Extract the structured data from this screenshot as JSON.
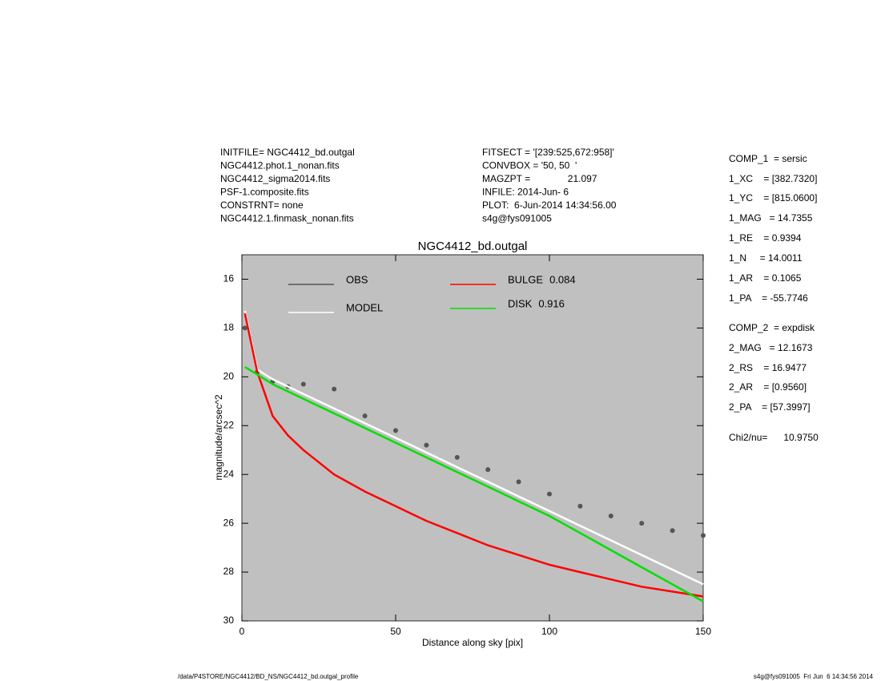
{
  "chart_data": {
    "type": "profile",
    "title": "NGC4412_bd.outgal",
    "x_label": "Distance along sky [pix]",
    "y_label": "magnitude/arcsec^2",
    "xlim": [
      0,
      150
    ],
    "ylim": [
      30,
      15
    ],
    "xticks": [
      0,
      50,
      100,
      150
    ],
    "yticks": [
      16,
      18,
      20,
      22,
      24,
      26,
      28,
      30
    ],
    "background": "#c0c0c0",
    "x": [
      1,
      5,
      10,
      15,
      20,
      30,
      40,
      50,
      60,
      70,
      80,
      90,
      100,
      110,
      120,
      130,
      140,
      150
    ],
    "series": [
      {
        "name": "OBS",
        "color": "#555555",
        "style": "scatter",
        "values": [
          18.0,
          19.8,
          20.2,
          20.4,
          20.3,
          20.5,
          21.6,
          22.2,
          22.8,
          23.3,
          23.8,
          24.3,
          24.8,
          25.3,
          25.7,
          26.0,
          26.3,
          26.5
        ]
      },
      {
        "name": "MODEL",
        "color": "#ffffff",
        "style": "line",
        "values": [
          17.3,
          19.7,
          20.1,
          20.4,
          20.7,
          21.3,
          21.9,
          22.5,
          23.1,
          23.7,
          24.3,
          24.9,
          25.5,
          26.1,
          26.7,
          27.3,
          27.9,
          28.5
        ]
      },
      {
        "name": "BULGE",
        "fraction": 0.084,
        "color": "#ff0000",
        "style": "line",
        "values": [
          17.4,
          19.8,
          21.6,
          22.4,
          23.0,
          24.0,
          24.7,
          25.3,
          25.9,
          26.4,
          26.9,
          27.3,
          27.7,
          28.0,
          28.3,
          28.6,
          28.8,
          29.0
        ]
      },
      {
        "name": "DISK",
        "fraction": 0.916,
        "color": "#00e000",
        "style": "line",
        "values": [
          19.6,
          19.9,
          20.3,
          20.6,
          20.9,
          21.5,
          22.1,
          22.7,
          23.3,
          23.9,
          24.5,
          25.1,
          25.7,
          26.4,
          27.1,
          27.8,
          28.5,
          29.2
        ]
      }
    ],
    "annotations": {
      "left": [
        "INITFILE= NGC4412_bd.outgal",
        "NGC4412.phot.1_nonan.fits",
        "NGC4412_sigma2014.fits",
        "PSF-1.composite.fits",
        "CONSTRNT= none",
        "NGC4412.1.finmask_nonan.fits"
      ],
      "middle": [
        "FITSECT = '[239:525,672:958]'",
        "CONVBOX = '50, 50  '",
        "MAGZPT =              21.097",
        "INFILE: 2014-Jun- 6",
        "PLOT:  6-Jun-2014 14:34:56.00",
        "s4g@fys091005"
      ],
      "right": [
        "COMP_1  = sersic",
        "1_XC    = [382.7320]",
        "1_YC    = [815.0600]",
        "1_MAG   = 14.7355",
        "1_RE    = 0.9394",
        "1_N     = 14.0011",
        "1_AR    = 0.1065",
        "1_PA    = -55.7746",
        "COMP_2  = expdisk",
        "2_MAG   = 12.1673",
        "2_RS    = 16.9477",
        "2_AR    = [0.9560]",
        "2_PA    = [57.3997]",
        "Chi2/nu=      10.9750"
      ],
      "footer_left": "/data/P4STORE/NGC4412/BD_NS/NGC4412_bd.outgal_profile",
      "footer_right": "s4g@fys091005  Fri Jun  6 14:34:56 2014"
    }
  }
}
